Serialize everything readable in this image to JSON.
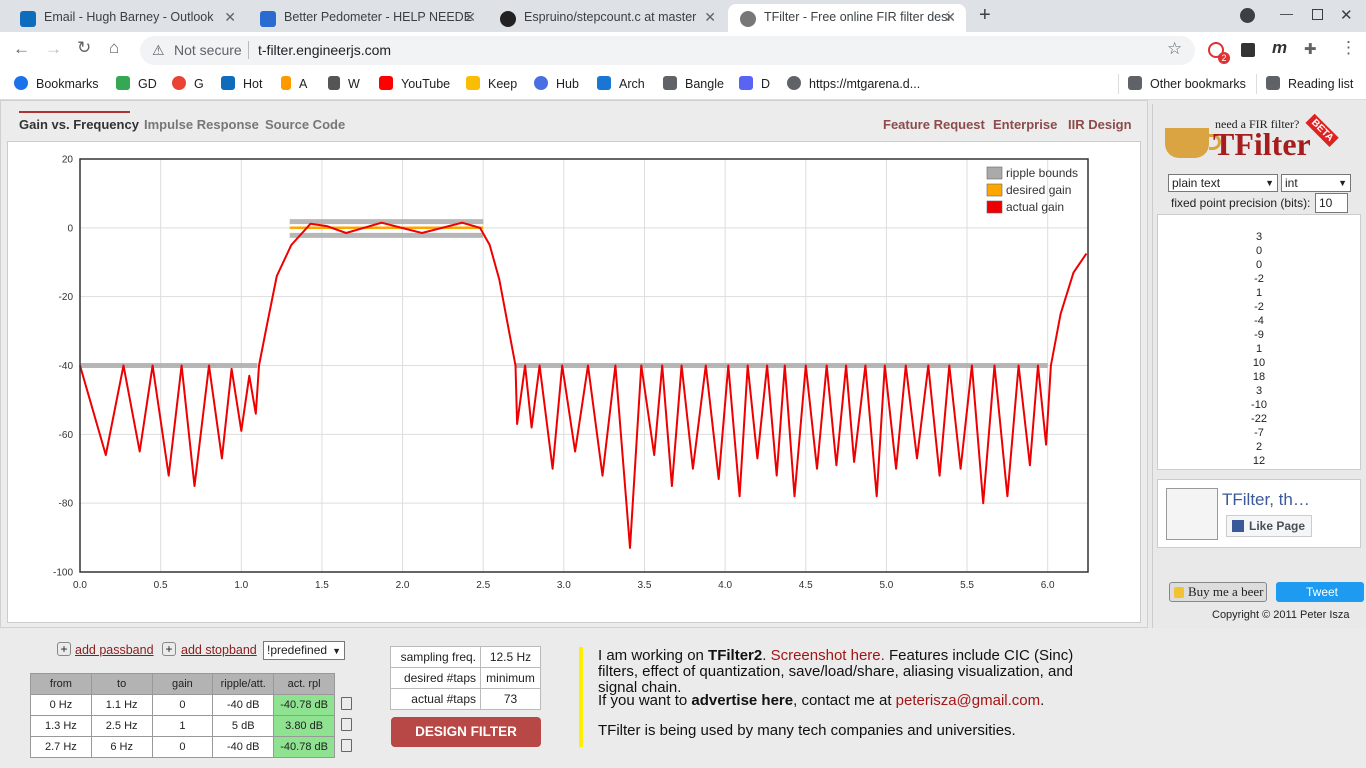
{
  "browser": {
    "tabs": [
      "Email - Hugh Barney - Outlook",
      "Better Pedometer - HELP NEEDE",
      "Espruino/stepcount.c at master",
      "TFilter - Free online FIR filter desi"
    ],
    "not_secure": "Not secure",
    "url": "t-filter.engineerjs.com",
    "extension_badge": "2",
    "bookmarks": [
      "Bookmarks",
      "GD",
      "G",
      "Hot",
      "A",
      "W",
      "YouTube",
      "Keep",
      "Hub",
      "Arch",
      "Bangle",
      "D",
      "https://mtgarena.d..."
    ],
    "other_bookmarks": "Other bookmarks",
    "reading_list": "Reading list"
  },
  "nav": {
    "left": [
      "Gain vs. Frequency",
      "Impulse Response",
      "Source Code"
    ],
    "right": [
      "Feature Request",
      "Enterprise",
      "IIR Design"
    ]
  },
  "chart_data": {
    "type": "line",
    "xlim": [
      0,
      6.25
    ],
    "ylim": [
      -100,
      20
    ],
    "xticks": [
      {
        "value": 0,
        "label": "0.0"
      },
      {
        "value": 0.5,
        "label": "0.5"
      },
      {
        "value": 1,
        "label": "1.0"
      },
      {
        "value": 1.5,
        "label": "1.5"
      },
      {
        "value": 2,
        "label": "2.0"
      },
      {
        "value": 2.5,
        "label": "2.5"
      },
      {
        "value": 3,
        "label": "3.0"
      },
      {
        "value": 3.5,
        "label": "3.5"
      },
      {
        "value": 4,
        "label": "4.0"
      },
      {
        "value": 4.5,
        "label": "4.5"
      },
      {
        "value": 5,
        "label": "5.0"
      },
      {
        "value": 5.5,
        "label": "5.5"
      },
      {
        "value": 6,
        "label": "6.0"
      }
    ],
    "yticks": [
      -100,
      -80,
      -60,
      -40,
      -20,
      0,
      20
    ],
    "grid": true,
    "legend": "top-right",
    "series": [
      {
        "name": "ripple bounds",
        "color": "#aaaaaa",
        "x": [
          0,
          1.1,
          null,
          1.3,
          2.5,
          null,
          1.3,
          2.5,
          null,
          2.7,
          6
        ],
        "values": [
          -40,
          -40,
          null,
          1.8,
          1.8,
          null,
          -2.2,
          -2.2,
          null,
          -40,
          -40
        ]
      },
      {
        "name": "desired gain",
        "color": "#ffa500",
        "x": [
          1.3,
          2.5
        ],
        "values": [
          0,
          0
        ]
      },
      {
        "name": "actual gain",
        "color": "#ee0000",
        "x": [
          0,
          0.16,
          0.27,
          0.37,
          0.45,
          0.55,
          0.63,
          0.71,
          0.8,
          0.88,
          0.94,
          1.0,
          1.05,
          1.09,
          1.11,
          1.16,
          1.22,
          1.31,
          1.43,
          1.53,
          1.65,
          1.87,
          2.12,
          2.37,
          2.48,
          2.54,
          2.6,
          2.66,
          2.7,
          2.71,
          2.76,
          2.8,
          2.85,
          2.93,
          2.99,
          3.07,
          3.15,
          3.24,
          3.32,
          3.41,
          3.48,
          3.56,
          3.61,
          3.67,
          3.73,
          3.8,
          3.88,
          3.96,
          4.02,
          4.09,
          4.14,
          4.2,
          4.26,
          4.32,
          4.37,
          4.43,
          4.5,
          4.57,
          4.63,
          4.69,
          4.75,
          4.8,
          4.87,
          4.94,
          4.99,
          5.06,
          5.12,
          5.19,
          5.26,
          5.33,
          5.39,
          5.46,
          5.53,
          5.6,
          5.67,
          5.75,
          5.82,
          5.89,
          5.94,
          5.99,
          6.02,
          6.08,
          6.16,
          6.24
        ],
        "values": [
          -40,
          -66,
          -40,
          -65,
          -40,
          -72,
          -40,
          -75,
          -40,
          -67,
          -41,
          -59,
          -43,
          -54,
          -40,
          -28,
          -14,
          -5,
          1.2,
          0.5,
          -1.5,
          1.5,
          -1.5,
          1.5,
          0,
          -5,
          -15,
          -30,
          -40,
          -57,
          -40,
          -58,
          -40,
          -70,
          -40,
          -65,
          -40,
          -72,
          -40,
          -93,
          -40,
          -66,
          -40,
          -75,
          -40,
          -70,
          -40,
          -73,
          -40,
          -78,
          -40,
          -67,
          -40,
          -72,
          -40,
          -78,
          -40,
          -70,
          -40,
          -69,
          -40,
          -68,
          -40,
          -78,
          -40,
          -70,
          -40,
          -67,
          -40,
          -72,
          -40,
          -70,
          -40,
          -80,
          -40,
          -78,
          -40,
          -69,
          -40,
          -63,
          -40,
          -25,
          -13,
          -7.5
        ]
      }
    ]
  },
  "side": {
    "logo_tagline": "need a FIR filter?",
    "logo_name": "TFilter",
    "logo_badge": "BETA",
    "format": "plain text",
    "number_type": "int",
    "precision_label": "fixed point precision (bits):",
    "precision_value": "10",
    "coefficients": [
      "3",
      "0",
      "0",
      "-2",
      "1",
      "-2",
      "-4",
      "-9",
      "1",
      "10",
      "18",
      "3",
      "-10",
      "-22",
      "-7",
      "2",
      "12"
    ],
    "fb_name": "TFilter, th…",
    "fb_like": "Like Page",
    "beer": "Buy me a beer",
    "tweet": "Tweet",
    "copyright": "Copyright © 2011 Peter Isza"
  },
  "controls": {
    "add_passband": "add passband",
    "add_stopband": "add stopband",
    "predefined": "!predefined",
    "bands": {
      "header": [
        "from",
        "to",
        "gain",
        "ripple/att.",
        "act. rpl"
      ],
      "rows": [
        [
          "0 Hz",
          "1.1 Hz",
          "0",
          "-40 dB",
          "-40.78 dB"
        ],
        [
          "1.3 Hz",
          "2.5 Hz",
          "1",
          "5 dB",
          "3.80 dB"
        ],
        [
          "2.7 Hz",
          "6 Hz",
          "0",
          "-40 dB",
          "-40.78 dB"
        ]
      ]
    },
    "params": [
      [
        "sampling freq.",
        "12.5 Hz"
      ],
      [
        "desired #taps",
        "minimum"
      ],
      [
        "actual #taps",
        "73"
      ]
    ],
    "design": "DESIGN FILTER"
  },
  "info": [
    [
      "I am working on ",
      "TFilter2",
      ". ",
      "Screenshot here.",
      " Features include CIC (Sinc) filters, effect of quantization, save/load/share, aliasing visualization, and signal chain."
    ],
    [
      "If you want to ",
      "advertise here",
      ", contact me at ",
      "peterisza@gmail.com",
      "."
    ],
    [
      "TFilter is being used by many tech companies and universities."
    ]
  ]
}
